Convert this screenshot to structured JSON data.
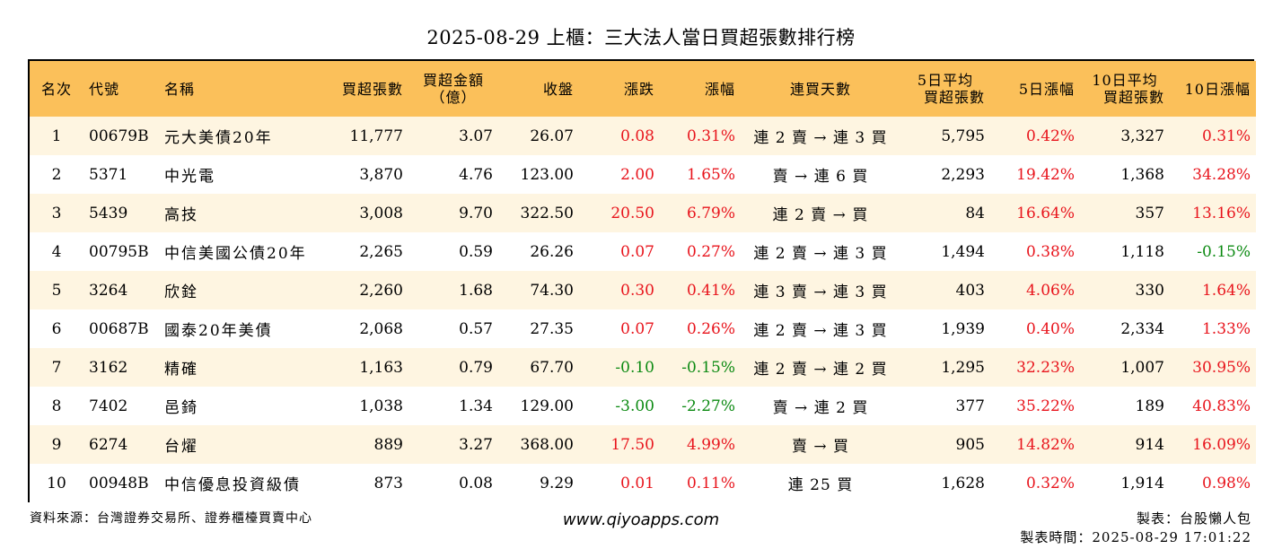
{
  "title": "2025-08-29 上櫃：三大法人當日買超張數排行榜",
  "colors": {
    "header_bg": "#fbc05a",
    "row_alt_bg": "#fef5e1",
    "up": "#e8141c",
    "down": "#0c8a12"
  },
  "headers": {
    "rank": "名次",
    "code": "代號",
    "name": "名稱",
    "net_buy_lots": "買超張數",
    "net_buy_amount_l1": "買超金額",
    "net_buy_amount_l2": "（億）",
    "close": "收盤",
    "change": "漲跌",
    "change_pct": "漲幅",
    "streak": "連買天數",
    "avg5_l1": "5日平均",
    "avg5_l2": "買超張數",
    "pct5": "5日漲幅",
    "avg10_l1": "10日平均",
    "avg10_l2": "買超張數",
    "pct10": "10日漲幅"
  },
  "rows": [
    {
      "rank": "1",
      "code": "00679B",
      "name": "元大美債20年",
      "net_buy_lots": "11,777",
      "net_buy_amount": "3.07",
      "close": "26.07",
      "change": "0.08",
      "change_pct": "0.31%",
      "streak": "連 2 賣 → 連 3 買",
      "avg5": "5,795",
      "pct5": "0.42%",
      "avg10": "3,327",
      "pct10": "0.31%"
    },
    {
      "rank": "2",
      "code": "5371",
      "name": "中光電",
      "net_buy_lots": "3,870",
      "net_buy_amount": "4.76",
      "close": "123.00",
      "change": "2.00",
      "change_pct": "1.65%",
      "streak": "賣 → 連 6 買",
      "avg5": "2,293",
      "pct5": "19.42%",
      "avg10": "1,368",
      "pct10": "34.28%"
    },
    {
      "rank": "3",
      "code": "5439",
      "name": "高技",
      "net_buy_lots": "3,008",
      "net_buy_amount": "9.70",
      "close": "322.50",
      "change": "20.50",
      "change_pct": "6.79%",
      "streak": "連 2 賣 → 買",
      "avg5": "84",
      "pct5": "16.64%",
      "avg10": "357",
      "pct10": "13.16%"
    },
    {
      "rank": "4",
      "code": "00795B",
      "name": "中信美國公債20年",
      "net_buy_lots": "2,265",
      "net_buy_amount": "0.59",
      "close": "26.26",
      "change": "0.07",
      "change_pct": "0.27%",
      "streak": "連 2 賣 → 連 3 買",
      "avg5": "1,494",
      "pct5": "0.38%",
      "avg10": "1,118",
      "pct10": "-0.15%"
    },
    {
      "rank": "5",
      "code": "3264",
      "name": "欣銓",
      "net_buy_lots": "2,260",
      "net_buy_amount": "1.68",
      "close": "74.30",
      "change": "0.30",
      "change_pct": "0.41%",
      "streak": "連 3 賣 → 連 3 買",
      "avg5": "403",
      "pct5": "4.06%",
      "avg10": "330",
      "pct10": "1.64%"
    },
    {
      "rank": "6",
      "code": "00687B",
      "name": "國泰20年美債",
      "net_buy_lots": "2,068",
      "net_buy_amount": "0.57",
      "close": "27.35",
      "change": "0.07",
      "change_pct": "0.26%",
      "streak": "連 2 賣 → 連 3 買",
      "avg5": "1,939",
      "pct5": "0.40%",
      "avg10": "2,334",
      "pct10": "1.33%"
    },
    {
      "rank": "7",
      "code": "3162",
      "name": "精確",
      "net_buy_lots": "1,163",
      "net_buy_amount": "0.79",
      "close": "67.70",
      "change": "-0.10",
      "change_pct": "-0.15%",
      "streak": "連 2 賣 → 連 2 買",
      "avg5": "1,295",
      "pct5": "32.23%",
      "avg10": "1,007",
      "pct10": "30.95%"
    },
    {
      "rank": "8",
      "code": "7402",
      "name": "邑錡",
      "net_buy_lots": "1,038",
      "net_buy_amount": "1.34",
      "close": "129.00",
      "change": "-3.00",
      "change_pct": "-2.27%",
      "streak": "賣 → 連 2 買",
      "avg5": "377",
      "pct5": "35.22%",
      "avg10": "189",
      "pct10": "40.83%"
    },
    {
      "rank": "9",
      "code": "6274",
      "name": "台燿",
      "net_buy_lots": "889",
      "net_buy_amount": "3.27",
      "close": "368.00",
      "change": "17.50",
      "change_pct": "4.99%",
      "streak": "賣 → 買",
      "avg5": "905",
      "pct5": "14.82%",
      "avg10": "914",
      "pct10": "16.09%"
    },
    {
      "rank": "10",
      "code": "00948B",
      "name": "中信優息投資級債",
      "net_buy_lots": "873",
      "net_buy_amount": "0.08",
      "close": "9.29",
      "change": "0.01",
      "change_pct": "0.11%",
      "streak": "連 25 買",
      "avg5": "1,628",
      "pct5": "0.32%",
      "avg10": "1,914",
      "pct10": "0.98%"
    }
  ],
  "footer": {
    "source": "資料來源：台灣證券交易所、證券櫃檯買賣中心",
    "website": "www.qiyoapps.com",
    "maker": "製表：台股懶人包",
    "time": "製表時間：2025-08-29 17:01:22"
  }
}
